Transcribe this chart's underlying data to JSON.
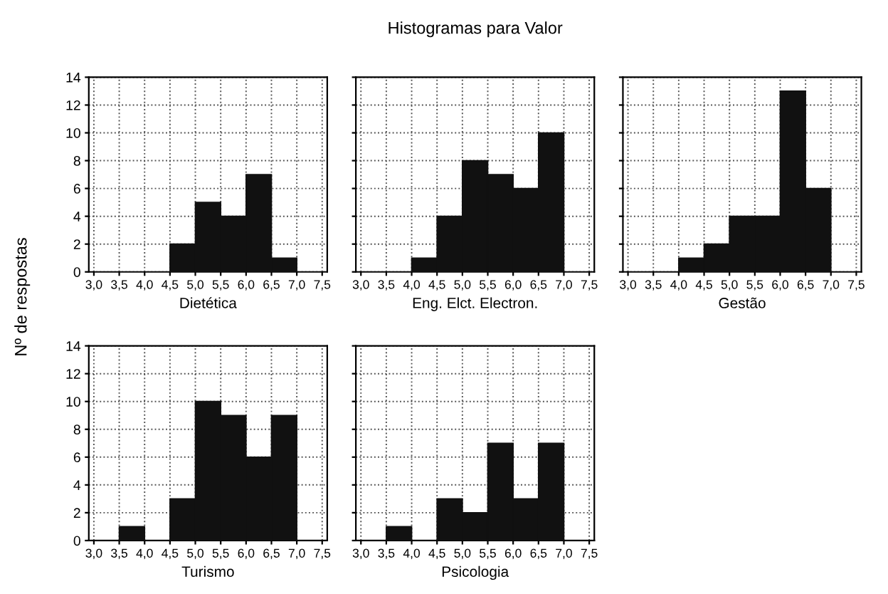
{
  "chart_data": [
    {
      "type": "histogram",
      "ylabel": "Nº de respostas",
      "xlabel": "Dietética",
      "bins": [
        3.0,
        3.5,
        4.0,
        4.5,
        5.0,
        5.5,
        6.0,
        6.5,
        7.0,
        7.5
      ],
      "values": [
        0,
        0,
        0,
        2,
        5,
        4,
        7,
        1,
        0
      ],
      "color": "#111111",
      "xlim": [
        2.9,
        7.6
      ],
      "xticks": [
        {
          "value": 3.0,
          "label": "3,0"
        },
        {
          "value": 3.5,
          "label": "3,5"
        },
        {
          "value": 4.0,
          "label": "4,0"
        },
        {
          "value": 4.5,
          "label": "4,5"
        },
        {
          "value": 5.0,
          "label": "5,0"
        },
        {
          "value": 5.5,
          "label": "5,5"
        },
        {
          "value": 6.0,
          "label": "6,0"
        },
        {
          "value": 6.5,
          "label": "6,5"
        },
        {
          "value": 7.0,
          "label": "7,0"
        },
        {
          "value": 7.5,
          "label": "7,5"
        }
      ],
      "ylim": [
        0,
        14
      ],
      "yticks": [
        0,
        2,
        4,
        6,
        8,
        10,
        12,
        14
      ],
      "grid": true
    },
    {
      "type": "histogram",
      "title": "Histogramas para Valor",
      "xlabel": "Eng. Elct. Electron.",
      "bins": [
        3.0,
        3.5,
        4.0,
        4.5,
        5.0,
        5.5,
        6.0,
        6.5,
        7.0,
        7.5
      ],
      "values": [
        0,
        0,
        1,
        4,
        8,
        7,
        6,
        10,
        0
      ],
      "color": "#111111",
      "xlim": [
        2.9,
        7.6
      ],
      "xticks": [
        {
          "value": 3.0,
          "label": "3,0"
        },
        {
          "value": 3.5,
          "label": "3,5"
        },
        {
          "value": 4.0,
          "label": "4,0"
        },
        {
          "value": 4.5,
          "label": "4,5"
        },
        {
          "value": 5.0,
          "label": "5,0"
        },
        {
          "value": 5.5,
          "label": "5,5"
        },
        {
          "value": 6.0,
          "label": "6,0"
        },
        {
          "value": 6.5,
          "label": "6,5"
        },
        {
          "value": 7.0,
          "label": "7,0"
        },
        {
          "value": 7.5,
          "label": "7,5"
        }
      ],
      "ylim": [
        0,
        14
      ],
      "yticks": [
        0,
        2,
        4,
        6,
        8,
        10,
        12,
        14
      ],
      "tick_labels": "x",
      "grid": true
    },
    {
      "type": "histogram",
      "xlabel": "Gestão",
      "bins": [
        3.0,
        3.5,
        4.0,
        4.5,
        5.0,
        5.5,
        6.0,
        6.5,
        7.0,
        7.5
      ],
      "values": [
        0,
        0,
        1,
        2,
        4,
        4,
        13,
        6,
        0
      ],
      "color": "#111111",
      "xlim": [
        2.9,
        7.6
      ],
      "xticks": [
        {
          "value": 3.0,
          "label": "3,0"
        },
        {
          "value": 3.5,
          "label": "3,5"
        },
        {
          "value": 4.0,
          "label": "4,0"
        },
        {
          "value": 4.5,
          "label": "4,5"
        },
        {
          "value": 5.0,
          "label": "5,0"
        },
        {
          "value": 5.5,
          "label": "5,5"
        },
        {
          "value": 6.0,
          "label": "6,0"
        },
        {
          "value": 6.5,
          "label": "6,5"
        },
        {
          "value": 7.0,
          "label": "7,0"
        },
        {
          "value": 7.5,
          "label": "7,5"
        }
      ],
      "ylim": [
        0,
        14
      ],
      "yticks": [
        0,
        2,
        4,
        6,
        8,
        10,
        12,
        14
      ],
      "tick_labels": "x",
      "grid": true
    },
    {
      "type": "histogram",
      "xlabel": "Turismo",
      "bins": [
        3.0,
        3.5,
        4.0,
        4.5,
        5.0,
        5.5,
        6.0,
        6.5,
        7.0,
        7.5
      ],
      "values": [
        0,
        1,
        0,
        3,
        10,
        9,
        6,
        9,
        0
      ],
      "color": "#111111",
      "xlim": [
        2.9,
        7.6
      ],
      "xticks": [
        {
          "value": 3.0,
          "label": "3,0"
        },
        {
          "value": 3.5,
          "label": "3,5"
        },
        {
          "value": 4.0,
          "label": "4,0"
        },
        {
          "value": 4.5,
          "label": "4,5"
        },
        {
          "value": 5.0,
          "label": "5,0"
        },
        {
          "value": 5.5,
          "label": "5,5"
        },
        {
          "value": 6.0,
          "label": "6,0"
        },
        {
          "value": 6.5,
          "label": "6,5"
        },
        {
          "value": 7.0,
          "label": "7,0"
        },
        {
          "value": 7.5,
          "label": "7,5"
        }
      ],
      "ylim": [
        0,
        14
      ],
      "yticks": [
        0,
        2,
        4,
        6,
        8,
        10,
        12,
        14
      ],
      "grid": true
    },
    {
      "type": "histogram",
      "xlabel": "Psicologia",
      "bins": [
        3.0,
        3.5,
        4.0,
        4.5,
        5.0,
        5.5,
        6.0,
        6.5,
        7.0,
        7.5
      ],
      "values": [
        0,
        1,
        0,
        3,
        2,
        7,
        3,
        7,
        0
      ],
      "color": "#111111",
      "xlim": [
        2.9,
        7.6
      ],
      "xticks": [
        {
          "value": 3.0,
          "label": "3,0"
        },
        {
          "value": 3.5,
          "label": "3,5"
        },
        {
          "value": 4.0,
          "label": "4,0"
        },
        {
          "value": 4.5,
          "label": "4,5"
        },
        {
          "value": 5.0,
          "label": "5,0"
        },
        {
          "value": 5.5,
          "label": "5,5"
        },
        {
          "value": 6.0,
          "label": "6,0"
        },
        {
          "value": 6.5,
          "label": "6,5"
        },
        {
          "value": 7.0,
          "label": "7,0"
        },
        {
          "value": 7.5,
          "label": "7,5"
        }
      ],
      "ylim": [
        0,
        14
      ],
      "yticks": [
        0,
        2,
        4,
        6,
        8,
        10,
        12,
        14
      ],
      "tick_labels": "x",
      "grid": true
    }
  ]
}
